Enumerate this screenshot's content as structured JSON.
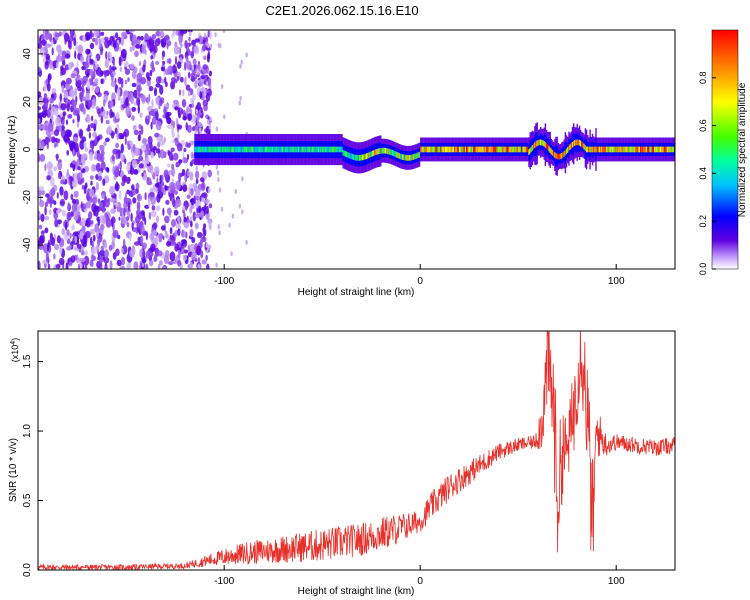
{
  "title": "C2E1.2026.062.15.16.E10",
  "chart_data": [
    {
      "type": "heatmap",
      "name": "spectrogram",
      "xlabel": "Height of straight line (km)",
      "ylabel": "Frequency (Hz)",
      "xlim": [
        -195,
        130
      ],
      "ylim": [
        -50,
        50
      ],
      "xticks": [
        -100,
        0,
        100
      ],
      "xtick_labels": [
        "-100",
        "0",
        "100"
      ],
      "yticks": [
        -40,
        -20,
        0,
        20,
        40
      ],
      "ytick_labels": [
        "-40",
        "-20",
        "0",
        "20",
        "40"
      ],
      "grid": false,
      "colorbar": {
        "label": "Normalized spectral amplitude",
        "range": [
          0,
          1
        ],
        "ticks": [
          0.0,
          0.2,
          0.4,
          0.6,
          0.8
        ],
        "tick_labels": [
          "0.0",
          "0.2",
          "0.4",
          "0.6",
          "0.8"
        ],
        "colormap": [
          "#ffffff",
          "#6000e0",
          "#0000ff",
          "#00c0ff",
          "#00ff80",
          "#60ff00",
          "#ffff00",
          "#ff8000",
          "#ff0000"
        ]
      },
      "regions": [
        {
          "label": "broadband noise",
          "x_range": [
            -195,
            -115
          ],
          "freq_range": [
            -50,
            50
          ],
          "amplitude": 0.1
        },
        {
          "label": "signal band",
          "x_range": [
            -115,
            130
          ],
          "center_freq_hz": 0,
          "band_halfwidth_hz": 5,
          "peak_amplitude": 1.0
        }
      ]
    },
    {
      "type": "line",
      "name": "snr",
      "xlabel": "Height of straight line (km)",
      "ylabel": "SNR (10 * v/v)",
      "y_multiplier_label": "(x10",
      "y_multiplier_exp": "4",
      "y_multiplier_close": ")",
      "xlim": [
        -195,
        130
      ],
      "ylim": [
        0,
        1.72
      ],
      "xticks": [
        -100,
        0,
        100
      ],
      "xtick_labels": [
        "-100",
        "0",
        "100"
      ],
      "yticks": [
        0.0,
        0.5,
        1.0,
        1.5
      ],
      "ytick_labels": [
        "0.0",
        "0.5",
        "1.0",
        "1.5"
      ],
      "grid": false,
      "series": [
        {
          "name": "SNR",
          "color": "#e8302a",
          "x": [
            -195,
            -150,
            -120,
            -105,
            -90,
            -70,
            -50,
            -30,
            -15,
            0,
            5,
            15,
            30,
            40,
            50,
            58,
            62,
            65,
            68,
            70,
            73,
            75,
            78,
            82,
            85,
            88,
            90,
            95,
            100,
            110,
            120,
            130
          ],
          "y": [
            0.02,
            0.02,
            0.03,
            0.08,
            0.12,
            0.15,
            0.18,
            0.22,
            0.28,
            0.35,
            0.45,
            0.6,
            0.75,
            0.85,
            0.9,
            0.92,
            1.05,
            1.5,
            1.2,
            0.5,
            0.9,
            0.85,
            1.1,
            1.65,
            1.2,
            0.3,
            1.0,
            0.9,
            0.92,
            0.9,
            0.88,
            0.9
          ],
          "amplitude_spread": [
            0.02,
            0.02,
            0.02,
            0.05,
            0.08,
            0.1,
            0.12,
            0.12,
            0.12,
            0.08,
            0.1,
            0.1,
            0.08,
            0.06,
            0.05,
            0.05,
            0.2,
            0.35,
            0.45,
            0.5,
            0.3,
            0.2,
            0.35,
            0.35,
            0.45,
            0.5,
            0.2,
            0.08,
            0.06,
            0.06,
            0.06,
            0.06
          ]
        }
      ]
    }
  ]
}
